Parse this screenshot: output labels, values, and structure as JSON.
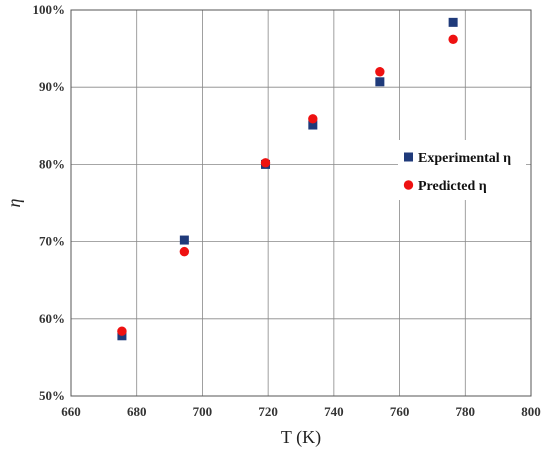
{
  "chart_data": {
    "type": "scatter",
    "title": "",
    "xlabel": "T (K)",
    "ylabel": "η",
    "xlim": [
      660,
      800
    ],
    "ylim": [
      50,
      100
    ],
    "x_ticks": [
      660,
      680,
      700,
      720,
      740,
      760,
      780,
      800
    ],
    "y_ticks": [
      50,
      60,
      70,
      80,
      90,
      100
    ],
    "y_tick_labels": [
      "50%",
      "60%",
      "70%",
      "80%",
      "90%",
      "100%"
    ],
    "grid": true,
    "legend_position": "right",
    "series": [
      {
        "name": "Experimental η",
        "marker": "square",
        "color": "#1f3a7a",
        "x": [
          675.5,
          694.5,
          719.2,
          733.6,
          754,
          776.3
        ],
        "y": [
          57.8,
          70.2,
          80.0,
          85.1,
          90.7,
          98.4
        ]
      },
      {
        "name": "Predicted η",
        "marker": "circle",
        "color": "#ee1111",
        "x": [
          675.5,
          694.5,
          719.2,
          733.6,
          754,
          776.3
        ],
        "y": [
          58.4,
          68.7,
          80.2,
          85.9,
          92.0,
          96.2
        ]
      }
    ]
  }
}
